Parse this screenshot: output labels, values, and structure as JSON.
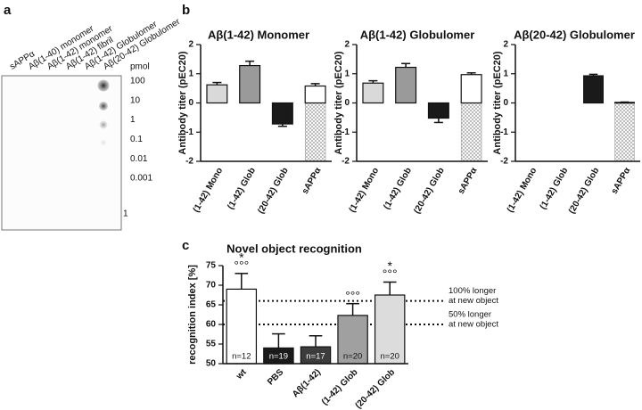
{
  "panel_labels": [
    "a",
    "b",
    "c"
  ],
  "dot_blot": {
    "columns": [
      "sAPPα",
      "Aβ(1-40) monomer",
      "Aβ(1-42) monomer",
      "Aβ(1-42) fibril",
      "Aβ(1-42) Globulomer",
      "Aβ(20-42) Globulomer"
    ],
    "unit": "pmol",
    "rows": [
      "100",
      "10",
      "1",
      "0.1",
      "0.01",
      "0.001"
    ],
    "footer": "1"
  },
  "chart_data": [
    {
      "type": "bar",
      "title": "Aβ(1-42) Monomer",
      "y_label": "Antibody titer (pEC20)",
      "categories": [
        "(1-42) Mono",
        "(1-42) Glob",
        "(20-42) Glob",
        "sAPPα"
      ],
      "values": [
        0.62,
        1.28,
        -0.72,
        0.58
      ],
      "error": [
        0.08,
        0.15,
        0.08,
        0.08
      ],
      "colors": [
        "#d9d9d9",
        "#9a9a9a",
        "#1a1a1a",
        "#ffffff"
      ],
      "hatch": [
        false,
        false,
        false,
        true
      ],
      "ylim": [
        -2,
        2
      ],
      "yticks": [
        -2,
        -1,
        0,
        1,
        2
      ]
    },
    {
      "type": "bar",
      "title": "Aβ(1-42) Globulomer",
      "y_label": "Antibody titer (pEC20)",
      "categories": [
        "(1-42) Mono",
        "(1-42) Glob",
        "(20-42) Glob",
        "sAPPα"
      ],
      "values": [
        0.68,
        1.22,
        -0.52,
        0.97
      ],
      "error": [
        0.08,
        0.13,
        0.15,
        0.06
      ],
      "colors": [
        "#d9d9d9",
        "#9a9a9a",
        "#1a1a1a",
        "#ffffff"
      ],
      "hatch": [
        false,
        false,
        false,
        true
      ],
      "ylim": [
        -2,
        2
      ],
      "yticks": [
        -2,
        -1,
        0,
        1,
        2
      ]
    },
    {
      "type": "bar",
      "title": "Aβ(20-42) Globulomer",
      "y_label": "Antibody titer (pEC20)",
      "categories": [
        "(1-42) Mono",
        "(1-42) Glob",
        "(20-42) Glob",
        "sAPPα"
      ],
      "values": [
        null,
        null,
        0.93,
        0.02
      ],
      "error": [
        null,
        null,
        0.05,
        0.01
      ],
      "colors": [
        "#d9d9d9",
        "#9a9a9a",
        "#1a1a1a",
        "#ffffff"
      ],
      "hatch": [
        false,
        false,
        false,
        true
      ],
      "ylim": [
        -2,
        2
      ],
      "yticks": [
        -2,
        -1,
        0,
        1,
        2
      ]
    },
    {
      "type": "bar",
      "title": "Novel object recognition",
      "y_label": "recognition index [%]",
      "categories": [
        "wt",
        "PBS",
        "Aβ(1-42)",
        "(1-42) Glob",
        "(20-42) Glob"
      ],
      "values": [
        69,
        54,
        54.3,
        62.3,
        67.5
      ],
      "error": [
        4,
        3.6,
        2.8,
        3,
        3.3
      ],
      "colors": [
        "#ffffff",
        "#1a1a1a",
        "#3c3c3c",
        "#a0a0a0",
        "#dcdcdc"
      ],
      "n_labels": [
        "n=12",
        "n=19",
        "n=17",
        "n=20",
        "n=20"
      ],
      "significance_stars": [
        "*",
        null,
        null,
        null,
        "*"
      ],
      "significance_circles": [
        "°°°",
        null,
        null,
        "°°°",
        "°°°"
      ],
      "reference_lines": [
        {
          "value": 66,
          "label_lines": [
            "100% longer",
            "at new object"
          ]
        },
        {
          "value": 60,
          "label_lines": [
            "50% longer",
            "at new object"
          ]
        }
      ],
      "ylim": [
        50,
        75
      ],
      "yticks": [
        50,
        55,
        60,
        65,
        70,
        75
      ]
    }
  ]
}
